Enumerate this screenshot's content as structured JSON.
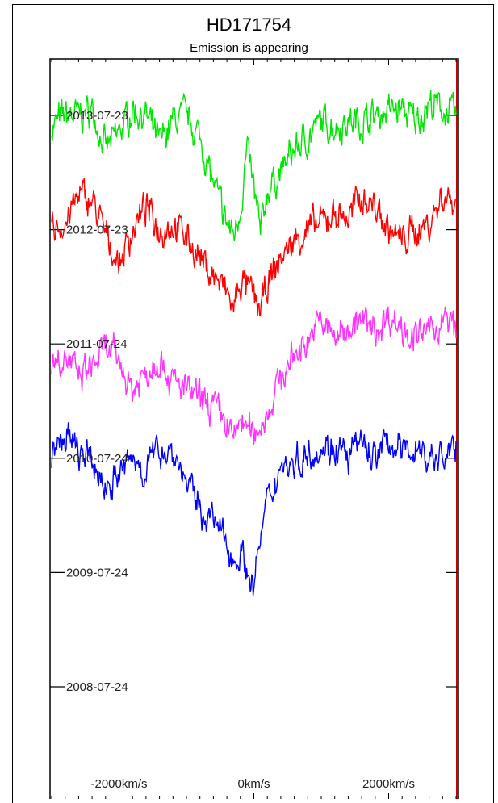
{
  "chart_data": {
    "type": "line",
    "title": "HD171754",
    "subtitle": "Emission is appearing",
    "xlabel": "",
    "ylabel": "",
    "xlim": [
      -3000,
      3000
    ],
    "x_ticks": [
      {
        "value": -2000,
        "label": "-2000km/s"
      },
      {
        "value": 0,
        "label": "0km/s"
      },
      {
        "value": 2000,
        "label": "2000km/s"
      }
    ],
    "y_ticks": [
      "2013-07-23",
      "2012-07-23",
      "2011-07-24",
      "2010-07-24",
      "2009-07-24",
      "2008-07-24"
    ],
    "grid": false,
    "series": [
      {
        "date": "2013-07-23",
        "color": "#00e600",
        "x": [
          -3000,
          -2800,
          -2600,
          -2400,
          -2200,
          -2000,
          -1800,
          -1600,
          -1400,
          -1200,
          -1000,
          -800,
          -600,
          -400,
          -300,
          -200,
          -100,
          0,
          100,
          200,
          400,
          600,
          800,
          1000,
          1200,
          1400,
          1600,
          1800,
          2000,
          2200,
          2400,
          2600,
          2800,
          3000
        ],
        "y": [
          5.9,
          6.0,
          6.0,
          6.05,
          5.7,
          5.85,
          6.05,
          6.0,
          5.75,
          5.95,
          6.0,
          5.8,
          5.4,
          5.05,
          4.95,
          5.2,
          5.7,
          5.35,
          4.95,
          5.35,
          5.5,
          5.7,
          5.8,
          5.95,
          5.9,
          5.95,
          5.95,
          6.0,
          6.05,
          6.05,
          5.95,
          6.1,
          6.05,
          6.0
        ]
      },
      {
        "date": "2012-07-23",
        "color": "#ff0000",
        "x": [
          -3000,
          -2800,
          -2600,
          -2400,
          -2200,
          -2000,
          -1800,
          -1600,
          -1400,
          -1200,
          -1000,
          -800,
          -600,
          -400,
          -300,
          -200,
          -100,
          0,
          100,
          200,
          400,
          600,
          800,
          1000,
          1200,
          1400,
          1600,
          1800,
          2000,
          2200,
          2400,
          2600,
          2800,
          3000
        ],
        "y": [
          5.0,
          5.05,
          5.3,
          5.25,
          4.95,
          4.7,
          5.0,
          5.2,
          5.0,
          5.05,
          4.95,
          4.75,
          4.6,
          4.45,
          4.3,
          4.55,
          4.5,
          4.4,
          4.3,
          4.5,
          4.75,
          4.9,
          5.0,
          5.05,
          5.15,
          5.1,
          5.3,
          5.2,
          5.0,
          4.9,
          5.0,
          5.05,
          5.3,
          5.25
        ]
      },
      {
        "date": "2011-07-24",
        "color": "#ff33ff",
        "x": [
          -3000,
          -2800,
          -2600,
          -2400,
          -2200,
          -2000,
          -1800,
          -1600,
          -1400,
          -1200,
          -1000,
          -800,
          -600,
          -400,
          -300,
          -200,
          -100,
          0,
          100,
          200,
          400,
          600,
          800,
          1000,
          1200,
          1400,
          1600,
          1800,
          2000,
          2200,
          2400,
          2600,
          2800,
          3000
        ],
        "y": [
          3.85,
          3.9,
          3.7,
          3.8,
          3.95,
          3.85,
          3.6,
          3.75,
          3.9,
          3.65,
          3.6,
          3.5,
          3.45,
          3.3,
          3.15,
          3.35,
          3.25,
          3.2,
          3.3,
          3.4,
          3.7,
          3.9,
          4.05,
          4.2,
          4.05,
          4.15,
          4.2,
          4.1,
          4.25,
          4.15,
          4.05,
          4.1,
          4.2,
          4.15
        ]
      },
      {
        "date": "2010-07-24",
        "color": "#0000ff",
        "x": [
          -3000,
          -2800,
          -2600,
          -2400,
          -2200,
          -2000,
          -1800,
          -1600,
          -1400,
          -1200,
          -1000,
          -800,
          -600,
          -400,
          -300,
          -200,
          -100,
          0,
          100,
          200,
          400,
          600,
          800,
          1000,
          1200,
          1400,
          1600,
          1800,
          2000,
          2200,
          2400,
          2600,
          2800,
          3000
        ],
        "y": [
          3.0,
          3.2,
          3.05,
          2.95,
          2.75,
          2.85,
          3.0,
          2.9,
          3.1,
          3.05,
          2.8,
          2.55,
          2.45,
          2.25,
          2.1,
          2.2,
          2.0,
          1.9,
          2.3,
          2.6,
          2.95,
          2.95,
          3.05,
          3.1,
          3.1,
          3.0,
          3.15,
          3.0,
          3.15,
          3.05,
          3.1,
          3.0,
          3.0,
          3.1
        ]
      }
    ],
    "colors": {
      "frame": "#000000",
      "axis": "#000000",
      "right_edge": "#cc0000"
    }
  }
}
